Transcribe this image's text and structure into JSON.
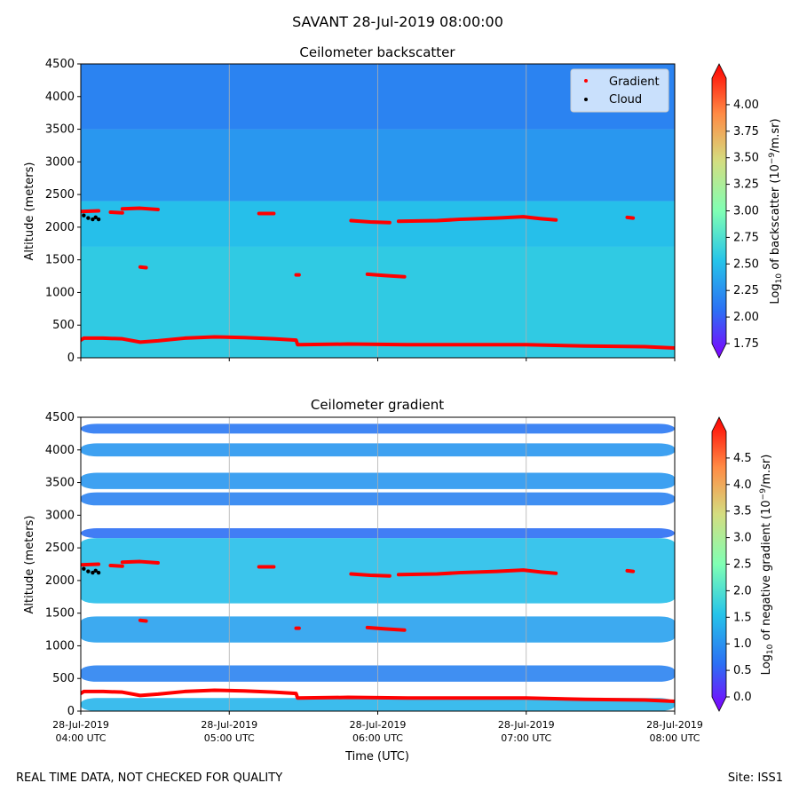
{
  "suptitle": "SAVANT 28-Jul-2019 08:00:00",
  "footer": {
    "left": "REAL TIME DATA, NOT CHECKED FOR QUALITY",
    "right": "Site: ISS1"
  },
  "chart_data": [
    {
      "type": "heatmap",
      "title": "Ceilometer backscatter",
      "ylabel": "Altitude (meters)",
      "xlabel": "",
      "x_range_hours": [
        4,
        8
      ],
      "ylim": [
        0,
        4500
      ],
      "yticks": [
        "0",
        "500",
        "1000",
        "1500",
        "2000",
        "2500",
        "3000",
        "3500",
        "4000",
        "4500"
      ],
      "colorbar": {
        "label_prefix": "Log",
        "label_sub": "10",
        "label_mid": " of backscatter (10",
        "label_sup": "−9",
        "label_suffix": "/m.sr)",
        "range": [
          1.75,
          4.25
        ],
        "ticks": [
          "1.75",
          "2.00",
          "2.25",
          "2.50",
          "2.75",
          "3.00",
          "3.25",
          "3.50",
          "3.75",
          "4.00"
        ]
      },
      "legend": {
        "position": "top-right",
        "entries": [
          {
            "label": "Gradient",
            "color": "#ff0000"
          },
          {
            "label": "Cloud",
            "color": "#000000"
          }
        ]
      },
      "background_field": [
        {
          "alt": [
            0,
            1700
          ],
          "value": 2.62
        },
        {
          "alt": [
            1700,
            2400
          ],
          "value": 2.55
        },
        {
          "alt": [
            2400,
            3500
          ],
          "value": 2.35
        },
        {
          "alt": [
            3500,
            4500
          ],
          "value": 2.25
        }
      ]
    },
    {
      "type": "heatmap",
      "title": "Ceilometer gradient",
      "ylabel": "Altitude (meters)",
      "xlabel": "Time (UTC)",
      "x_range_hours": [
        4,
        8
      ],
      "ylim": [
        0,
        4500
      ],
      "yticks": [
        "0",
        "500",
        "1000",
        "1500",
        "2000",
        "2500",
        "3000",
        "3500",
        "4000",
        "4500"
      ],
      "xticks": [
        {
          "h": 4,
          "line1": "28-Jul-2019",
          "line2": "04:00 UTC"
        },
        {
          "h": 5,
          "line1": "28-Jul-2019",
          "line2": "05:00 UTC"
        },
        {
          "h": 6,
          "line1": "28-Jul-2019",
          "line2": "06:00 UTC"
        },
        {
          "h": 7,
          "line1": "28-Jul-2019",
          "line2": "07:00 UTC"
        },
        {
          "h": 8,
          "line1": "28-Jul-2019",
          "line2": "08:00 UTC"
        }
      ],
      "colorbar": {
        "label_prefix": "Log",
        "label_sub": "10",
        "label_mid": " of negative gradient (10",
        "label_sup": "−9",
        "label_suffix": "/m.sr)",
        "range": [
          0.0,
          5.0
        ],
        "ticks": [
          "0.0",
          "0.5",
          "1.0",
          "1.5",
          "2.0",
          "2.5",
          "3.0",
          "3.5",
          "4.0",
          "4.5"
        ]
      },
      "bands": [
        {
          "alt": [
            0,
            200
          ],
          "value": 1.5
        },
        {
          "alt": [
            450,
            700
          ],
          "value": 1.0
        },
        {
          "alt": [
            1050,
            1450
          ],
          "value": 1.3
        },
        {
          "alt": [
            1650,
            2650
          ],
          "value": 1.6
        },
        {
          "alt": [
            2650,
            2800
          ],
          "value": 0.8
        },
        {
          "alt": [
            3150,
            3350
          ],
          "value": 1.0
        },
        {
          "alt": [
            3400,
            3650
          ],
          "value": 1.2
        },
        {
          "alt": [
            3900,
            4100
          ],
          "value": 1.2
        },
        {
          "alt": [
            4250,
            4400
          ],
          "value": 0.9
        }
      ]
    }
  ],
  "gradient_points": [
    {
      "h": 4.0,
      "a": 270
    },
    {
      "h": 4.02,
      "a": 300
    },
    {
      "h": 4.15,
      "a": 300
    },
    {
      "h": 4.28,
      "a": 290
    },
    {
      "h": 4.4,
      "a": 240
    },
    {
      "h": 4.52,
      "a": 260
    },
    {
      "h": 4.7,
      "a": 300
    },
    {
      "h": 4.9,
      "a": 320
    },
    {
      "h": 5.1,
      "a": 310
    },
    {
      "h": 5.3,
      "a": 290
    },
    {
      "h": 5.45,
      "a": 270
    },
    {
      "h": 5.46,
      "a": 200
    },
    {
      "h": 5.8,
      "a": 210
    },
    {
      "h": 6.2,
      "a": 200
    },
    {
      "h": 6.6,
      "a": 200
    },
    {
      "h": 7.0,
      "a": 200
    },
    {
      "h": 7.4,
      "a": 180
    },
    {
      "h": 7.8,
      "a": 170
    },
    {
      "h": 8.0,
      "a": 150
    }
  ],
  "gradient_segments": [
    {
      "pts": [
        [
          4.0,
          2240
        ],
        [
          4.12,
          2250
        ]
      ]
    },
    {
      "pts": [
        [
          4.2,
          2230
        ],
        [
          4.28,
          2220
        ]
      ]
    },
    {
      "pts": [
        [
          4.28,
          2280
        ],
        [
          4.4,
          2290
        ],
        [
          4.52,
          2270
        ]
      ]
    },
    {
      "pts": [
        [
          5.2,
          2210
        ],
        [
          5.3,
          2210
        ]
      ]
    },
    {
      "pts": [
        [
          5.82,
          2100
        ],
        [
          5.95,
          2080
        ],
        [
          6.08,
          2070
        ]
      ]
    },
    {
      "pts": [
        [
          6.14,
          2090
        ],
        [
          6.4,
          2100
        ],
        [
          6.55,
          2120
        ],
        [
          6.8,
          2140
        ],
        [
          6.98,
          2160
        ],
        [
          7.1,
          2130
        ],
        [
          7.2,
          2110
        ]
      ]
    },
    {
      "pts": [
        [
          7.68,
          2150
        ],
        [
          7.72,
          2140
        ]
      ]
    },
    {
      "pts": [
        [
          4.4,
          1390
        ],
        [
          4.44,
          1380
        ]
      ]
    },
    {
      "pts": [
        [
          5.45,
          1270
        ],
        [
          5.47,
          1270
        ]
      ]
    },
    {
      "pts": [
        [
          5.93,
          1280
        ],
        [
          6.05,
          1260
        ],
        [
          6.18,
          1240
        ]
      ]
    }
  ],
  "cloud_points": [
    {
      "h": 4.02,
      "a": 2180
    },
    {
      "h": 4.05,
      "a": 2140
    },
    {
      "h": 4.08,
      "a": 2120
    },
    {
      "h": 4.1,
      "a": 2150
    },
    {
      "h": 4.12,
      "a": 2120
    }
  ]
}
